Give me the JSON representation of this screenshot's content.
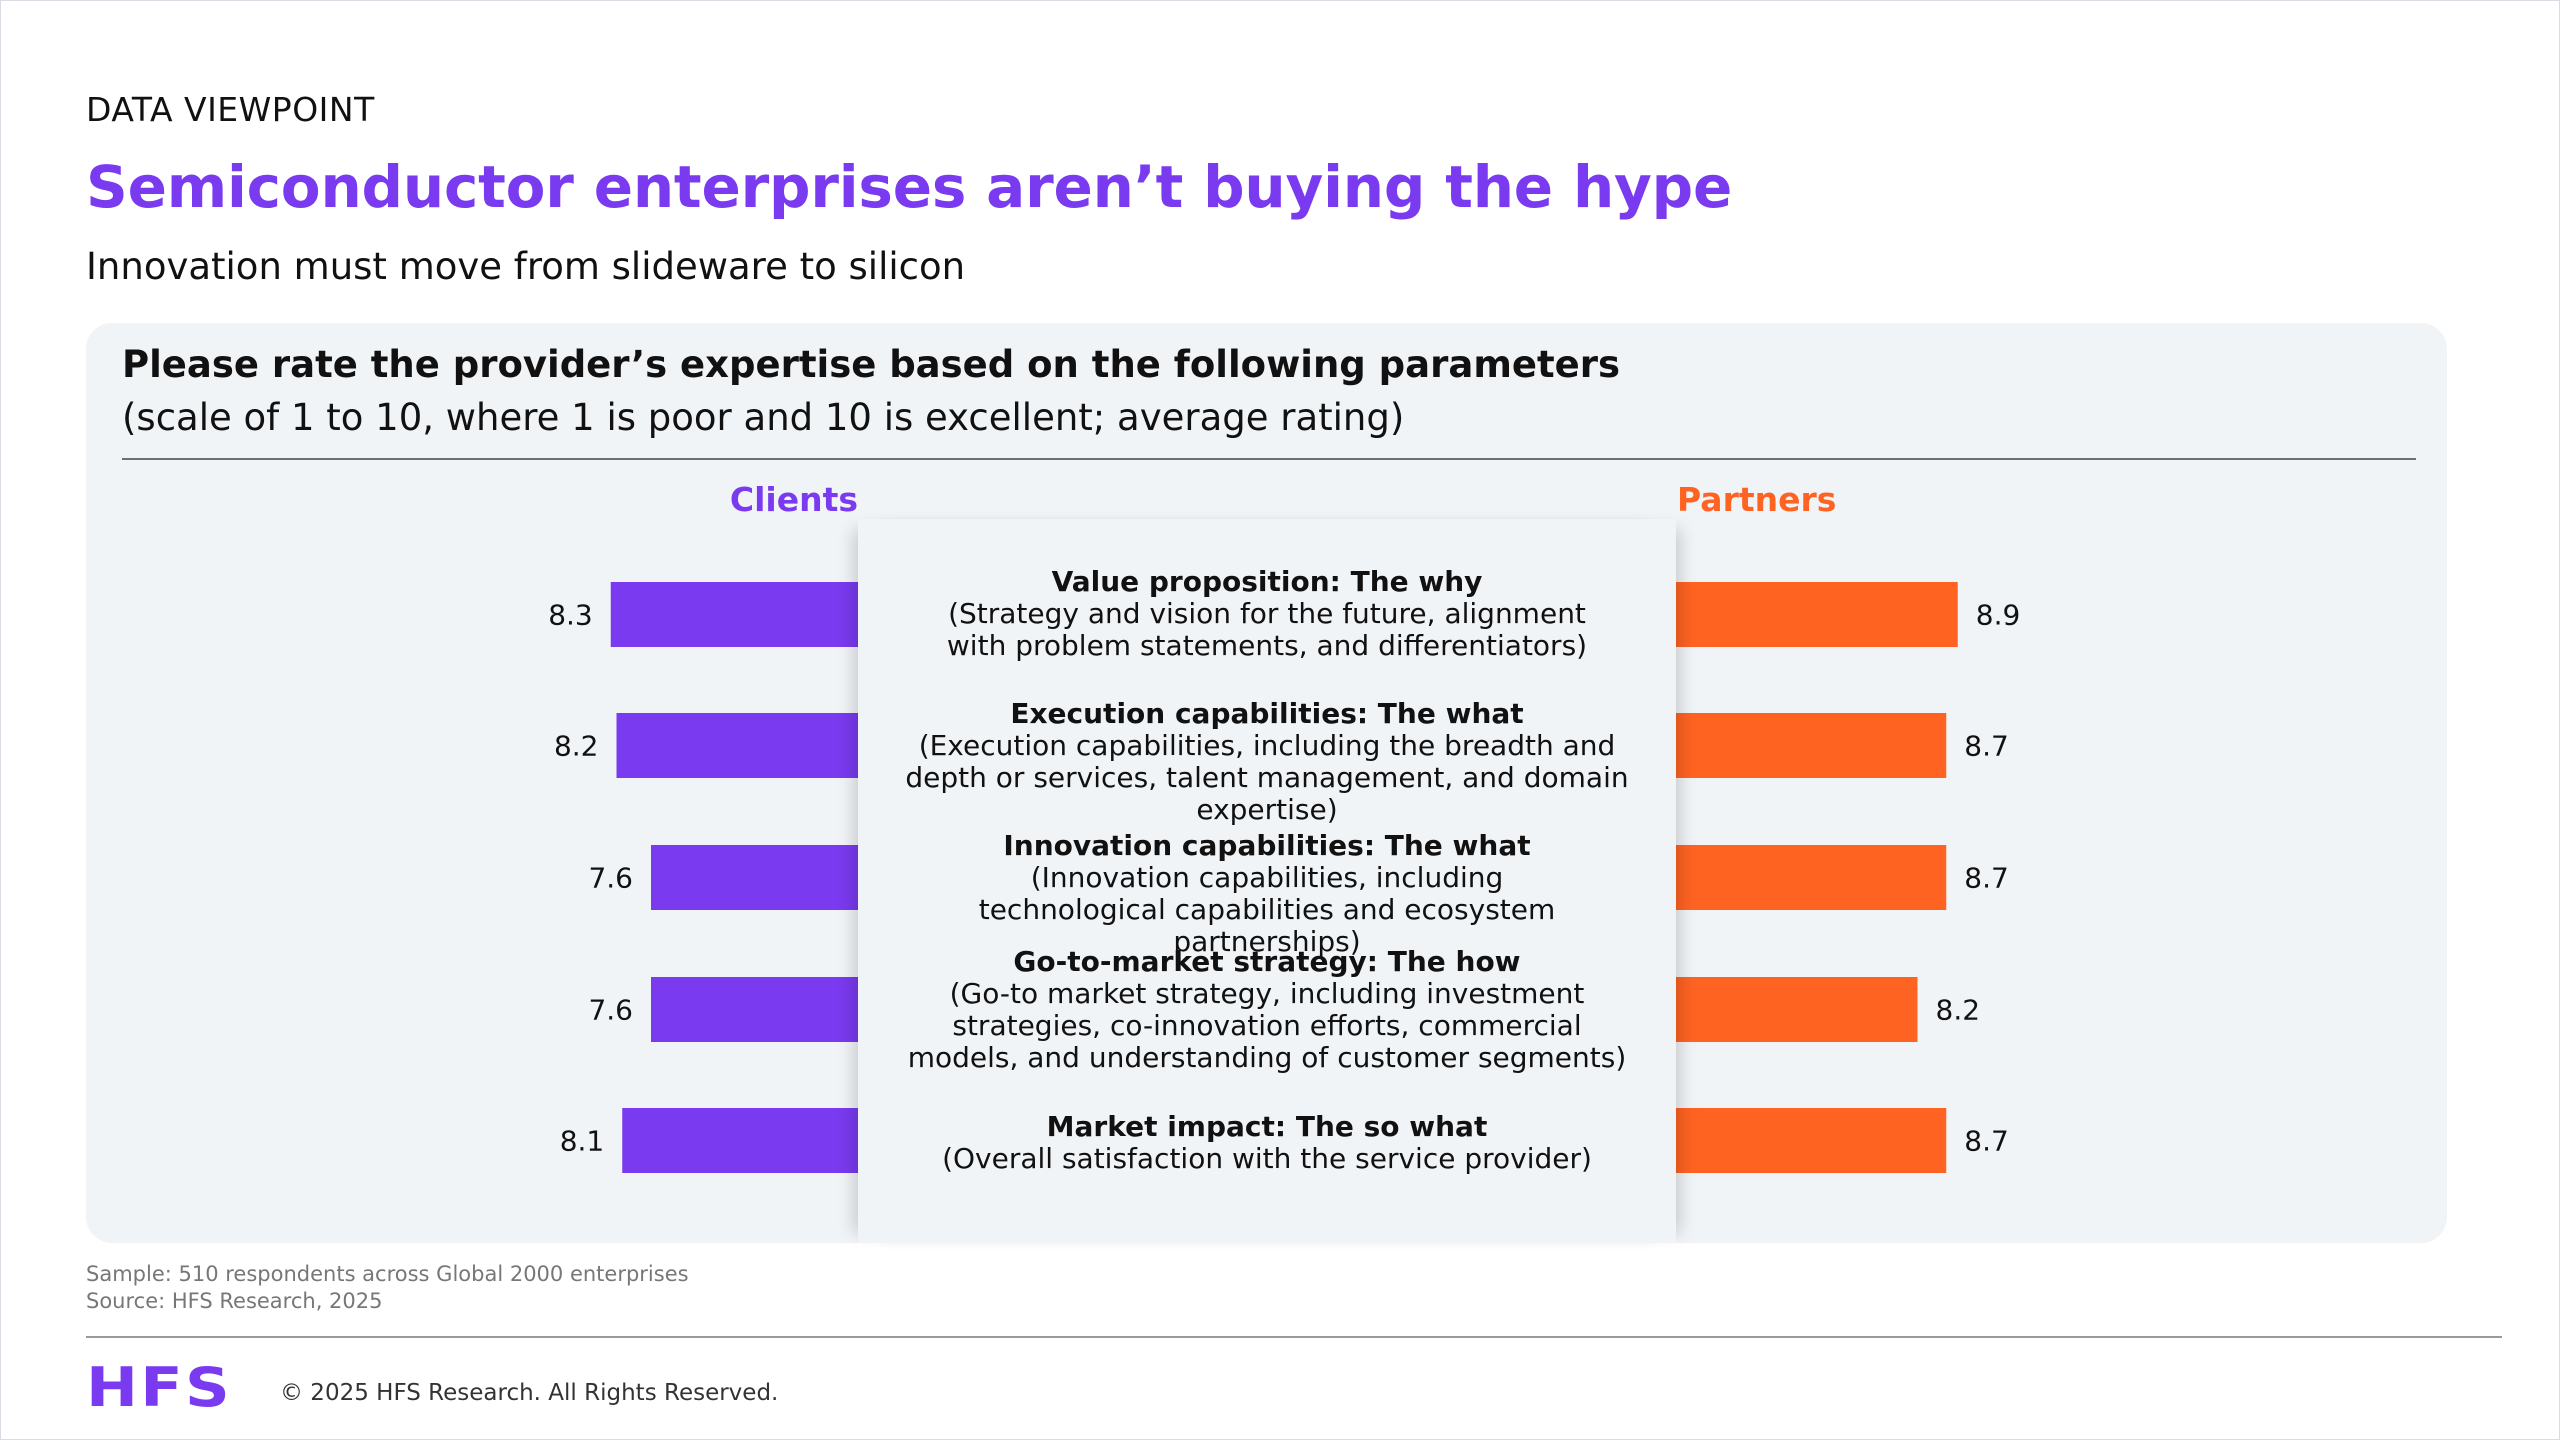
{
  "eyebrow": "DATA VIEWPOINT",
  "title": "Semiconductor enterprises aren’t buying the hype",
  "subtitle": "Innovation must move from slideware to silicon",
  "chart": {
    "question": "Please rate the provider’s expertise based on the following parameters",
    "scale_note": "(scale of 1 to 10, where 1 is poor and 10 is excellent; average rating)",
    "left_label": "Clients",
    "right_label": "Partners"
  },
  "params": [
    {
      "title": "Value proposition: The why",
      "desc": "(Strategy and vision for the future, alignment with problem statements, and differentiators)"
    },
    {
      "title": "Execution capabilities: The what",
      "desc": "(Execution capabilities, including the breadth and depth or services, talent management, and domain expertise)"
    },
    {
      "title": "Innovation capabilities: The what",
      "desc": "(Innovation capabilities, including technological capabilities and ecosystem partnerships)"
    },
    {
      "title": "Go-to-market strategy: The how",
      "desc": "(Go-to market strategy, including investment strategies, co-innovation efforts, commercial models, and understanding of customer segments)"
    },
    {
      "title": "Market impact: The so what",
      "desc": "(Overall satisfaction with the service provider)"
    }
  ],
  "chart_data": {
    "type": "bar",
    "orientation": "horizontal",
    "layout": "butterfly",
    "categories": [
      "Value proposition: The why",
      "Execution capabilities: The what",
      "Innovation capabilities: The what",
      "Go-to-market strategy: The how",
      "Market impact: The so what"
    ],
    "series": [
      {
        "name": "Clients",
        "values": [
          8.3,
          8.2,
          7.6,
          7.6,
          8.1
        ],
        "color": "#7a3af0"
      },
      {
        "name": "Partners",
        "values": [
          8.9,
          8.7,
          8.7,
          8.2,
          8.7
        ],
        "color": "#ff6322"
      }
    ],
    "data_labels": true,
    "grid": false
  },
  "footer": {
    "sample": "Sample: 510 respondents across Global 2000 enterprises",
    "source": "Source: HFS Research, 2025",
    "logo": "HFS",
    "copyright": "© 2025 HFS Research. All Rights Reserved."
  },
  "colors": {
    "accent": "#7a3af0",
    "partners": "#ff6322",
    "panel": "#f1f4f7"
  }
}
